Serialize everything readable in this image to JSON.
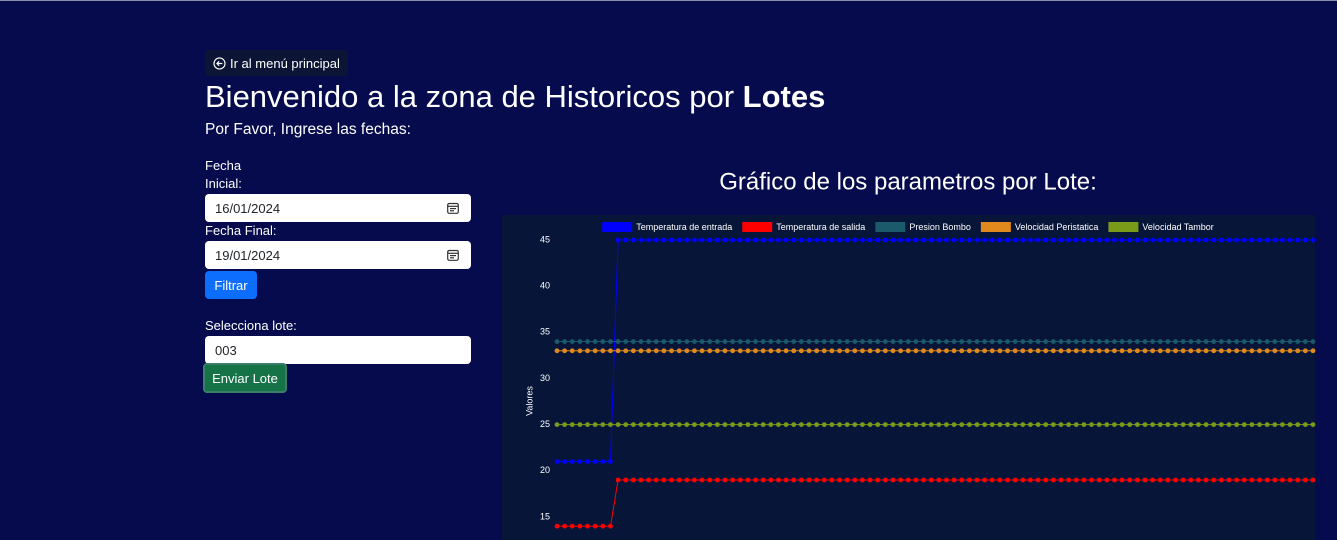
{
  "nav": {
    "back_button": "Ir al menú principal"
  },
  "header": {
    "title": "Bienvenido a la zona de Historicos por ",
    "title_bold": "Lotes",
    "subtitle": "Por Favor, Ingrese las fechas:"
  },
  "form": {
    "start_label": "Fecha Inicial:",
    "start_value": "16/01/2024",
    "end_label": "Fecha Final:",
    "end_value": "19/01/2024",
    "filter_button": "Filtrar",
    "lot_label": "Selecciona lote:",
    "lot_value": "003",
    "send_button": "Enviar Lote"
  },
  "chart_data": {
    "type": "line",
    "title": "Gráfico de los parametros por Lote:",
    "y_label": "Valores",
    "ylim": [
      12.5,
      45
    ],
    "yticks": [
      15,
      20,
      25,
      30,
      35,
      40,
      45
    ],
    "legend": "top",
    "series": [
      {
        "name": "Temperatura de entrada",
        "color": "#0000ff",
        "values": [
          21,
          21,
          21,
          21,
          21,
          21,
          21,
          21,
          45,
          45,
          45,
          45,
          45,
          45,
          45,
          45,
          45,
          45,
          45,
          45,
          45,
          45,
          45,
          45,
          45,
          45,
          45,
          45,
          45,
          45,
          45,
          45,
          45,
          45,
          45,
          45,
          45,
          45,
          45,
          45,
          45,
          45,
          45,
          45,
          45,
          45,
          45,
          45,
          45,
          45,
          45,
          45,
          45,
          45,
          45,
          45,
          45,
          45,
          45,
          45,
          45,
          45,
          45,
          45,
          45,
          45,
          45,
          45,
          45,
          45,
          45,
          45,
          45,
          45,
          45,
          45,
          45,
          45,
          45,
          45,
          45,
          45,
          45,
          45,
          45,
          45,
          45,
          45,
          45,
          45,
          45,
          45,
          45,
          45,
          45,
          45,
          45,
          45,
          45,
          45
        ]
      },
      {
        "name": "Temperatura de salida",
        "color": "#ff0000",
        "values": [
          14,
          14,
          14,
          14,
          14,
          14,
          14,
          14,
          19,
          19,
          19,
          19,
          19,
          19,
          19,
          19,
          19,
          19,
          19,
          19,
          19,
          19,
          19,
          19,
          19,
          19,
          19,
          19,
          19,
          19,
          19,
          19,
          19,
          19,
          19,
          19,
          19,
          19,
          19,
          19,
          19,
          19,
          19,
          19,
          19,
          19,
          19,
          19,
          19,
          19,
          19,
          19,
          19,
          19,
          19,
          19,
          19,
          19,
          19,
          19,
          19,
          19,
          19,
          19,
          19,
          19,
          19,
          19,
          19,
          19,
          19,
          19,
          19,
          19,
          19,
          19,
          19,
          19,
          19,
          19,
          19,
          19,
          19,
          19,
          19,
          19,
          19,
          19,
          19,
          19,
          19,
          19,
          19,
          19,
          19,
          19,
          19,
          19,
          19,
          19
        ]
      },
      {
        "name": "Presion Bombo",
        "color": "#1b5a6b",
        "values": [
          34,
          34,
          34,
          34,
          34,
          34,
          34,
          34,
          34,
          34,
          34,
          34,
          34,
          34,
          34,
          34,
          34,
          34,
          34,
          34,
          34,
          34,
          34,
          34,
          34,
          34,
          34,
          34,
          34,
          34,
          34,
          34,
          34,
          34,
          34,
          34,
          34,
          34,
          34,
          34,
          34,
          34,
          34,
          34,
          34,
          34,
          34,
          34,
          34,
          34,
          34,
          34,
          34,
          34,
          34,
          34,
          34,
          34,
          34,
          34,
          34,
          34,
          34,
          34,
          34,
          34,
          34,
          34,
          34,
          34,
          34,
          34,
          34,
          34,
          34,
          34,
          34,
          34,
          34,
          34,
          34,
          34,
          34,
          34,
          34,
          34,
          34,
          34,
          34,
          34,
          34,
          34,
          34,
          34,
          34,
          34,
          34,
          34,
          34,
          34
        ]
      },
      {
        "name": "Velocidad Peristatica",
        "color": "#e08a1e",
        "values": [
          33,
          33,
          33,
          33,
          33,
          33,
          33,
          33,
          33,
          33,
          33,
          33,
          33,
          33,
          33,
          33,
          33,
          33,
          33,
          33,
          33,
          33,
          33,
          33,
          33,
          33,
          33,
          33,
          33,
          33,
          33,
          33,
          33,
          33,
          33,
          33,
          33,
          33,
          33,
          33,
          33,
          33,
          33,
          33,
          33,
          33,
          33,
          33,
          33,
          33,
          33,
          33,
          33,
          33,
          33,
          33,
          33,
          33,
          33,
          33,
          33,
          33,
          33,
          33,
          33,
          33,
          33,
          33,
          33,
          33,
          33,
          33,
          33,
          33,
          33,
          33,
          33,
          33,
          33,
          33,
          33,
          33,
          33,
          33,
          33,
          33,
          33,
          33,
          33,
          33,
          33,
          33,
          33,
          33,
          33,
          33,
          33,
          33,
          33,
          33
        ]
      },
      {
        "name": "Velocidad Tambor",
        "color": "#7a9a1a",
        "values": [
          25,
          25,
          25,
          25,
          25,
          25,
          25,
          25,
          25,
          25,
          25,
          25,
          25,
          25,
          25,
          25,
          25,
          25,
          25,
          25,
          25,
          25,
          25,
          25,
          25,
          25,
          25,
          25,
          25,
          25,
          25,
          25,
          25,
          25,
          25,
          25,
          25,
          25,
          25,
          25,
          25,
          25,
          25,
          25,
          25,
          25,
          25,
          25,
          25,
          25,
          25,
          25,
          25,
          25,
          25,
          25,
          25,
          25,
          25,
          25,
          25,
          25,
          25,
          25,
          25,
          25,
          25,
          25,
          25,
          25,
          25,
          25,
          25,
          25,
          25,
          25,
          25,
          25,
          25,
          25,
          25,
          25,
          25,
          25,
          25,
          25,
          25,
          25,
          25,
          25,
          25,
          25,
          25,
          25,
          25,
          25,
          25,
          25,
          25,
          25
        ]
      }
    ]
  }
}
